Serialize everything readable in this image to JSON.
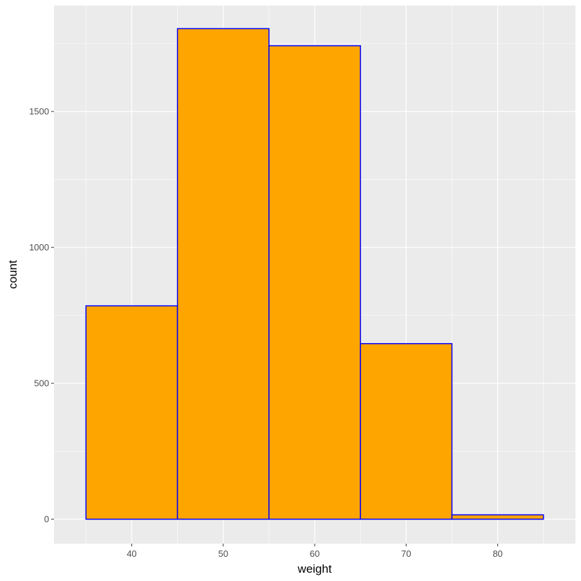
{
  "chart_data": {
    "type": "bar",
    "subtype": "histogram",
    "xlabel": "weight",
    "ylabel": "count",
    "xlim": [
      31.5,
      88.5
    ],
    "ylim": [
      -90,
      1890
    ],
    "bins": [
      {
        "start": 35,
        "end": 45,
        "count": 785
      },
      {
        "start": 45,
        "end": 55,
        "count": 1805
      },
      {
        "start": 55,
        "end": 65,
        "count": 1742
      },
      {
        "start": 65,
        "end": 75,
        "count": 646
      },
      {
        "start": 75,
        "end": 85,
        "count": 16
      }
    ],
    "x_ticks": [
      40,
      50,
      60,
      70,
      80
    ],
    "x_tick_labels": [
      "40",
      "50",
      "60",
      "70",
      "80"
    ],
    "y_ticks": [
      0,
      500,
      1000,
      1500
    ],
    "y_tick_labels": [
      "0",
      "500",
      "1000",
      "1500"
    ],
    "x_minor_ticks": [
      35,
      45,
      55,
      65,
      75,
      85
    ],
    "y_minor_ticks": [
      250,
      750,
      1250,
      1750
    ],
    "grid": true,
    "colors": {
      "bar_fill": "#FFA500",
      "bar_outline": "#0000FF",
      "panel_background": "#EBEBEB",
      "grid_line": "#FFFFFF",
      "tick_text": "#4D4D4D",
      "axis_title": "#000000"
    }
  }
}
